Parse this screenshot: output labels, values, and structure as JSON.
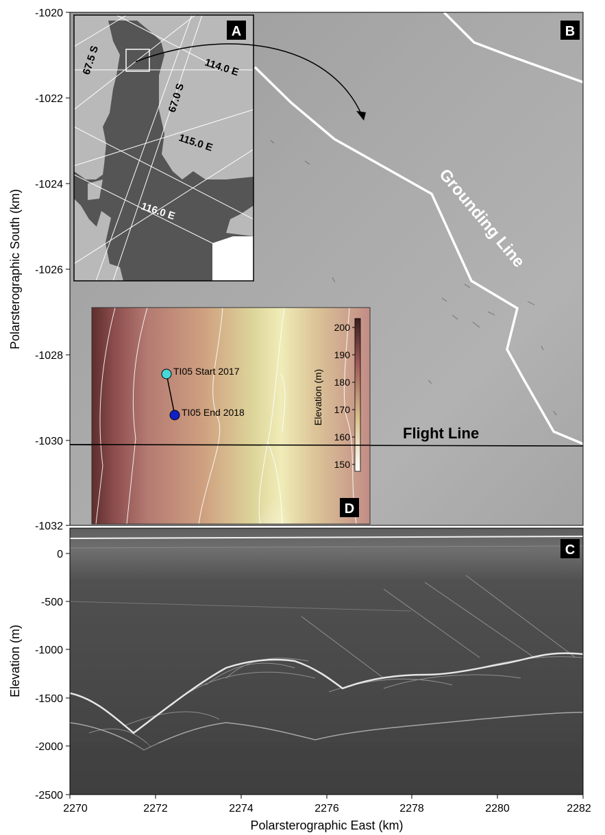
{
  "panels": {
    "A": {
      "letter": "A",
      "lat_labels": [
        "67.5 S",
        "67.0 S"
      ],
      "lon_labels": [
        "114.0 E",
        "115.0 E",
        "116.0 E"
      ]
    },
    "B": {
      "letter": "B",
      "grounding_line_label": "Grounding Line",
      "flight_line_label": "Flight Line"
    },
    "C": {
      "letter": "C"
    },
    "D": {
      "letter": "D",
      "start_label": "TI05 Start 2017",
      "end_label": "TI05 End 2018",
      "colorbar_label": "Elevation (m)",
      "colorbar_ticks": [
        "200",
        "190",
        "180",
        "170",
        "160",
        "150"
      ]
    }
  },
  "axes": {
    "top_ylabel": "Polarsterographic South (km)",
    "top_yticks": [
      "-1020",
      "-1022",
      "-1024",
      "-1026",
      "-1028",
      "-1030",
      "-1032"
    ],
    "bottom_ylabel": "Elevation (m)",
    "bottom_yticks": [
      "0",
      "-500",
      "-1000",
      "-1500",
      "-2000",
      "-2500"
    ],
    "xlabel": "Polarsterographic East (km)",
    "xticks": [
      "2270",
      "2272",
      "2274",
      "2276",
      "2278",
      "2280",
      "2282"
    ]
  },
  "colors": {
    "ice_gray": "#a7a7a7",
    "radar_dark": "#4a4a4a",
    "inset_land": "#555555",
    "inset_ice": "#b9b9b9",
    "start_point": "#47d9d9",
    "end_point": "#1020c8"
  }
}
